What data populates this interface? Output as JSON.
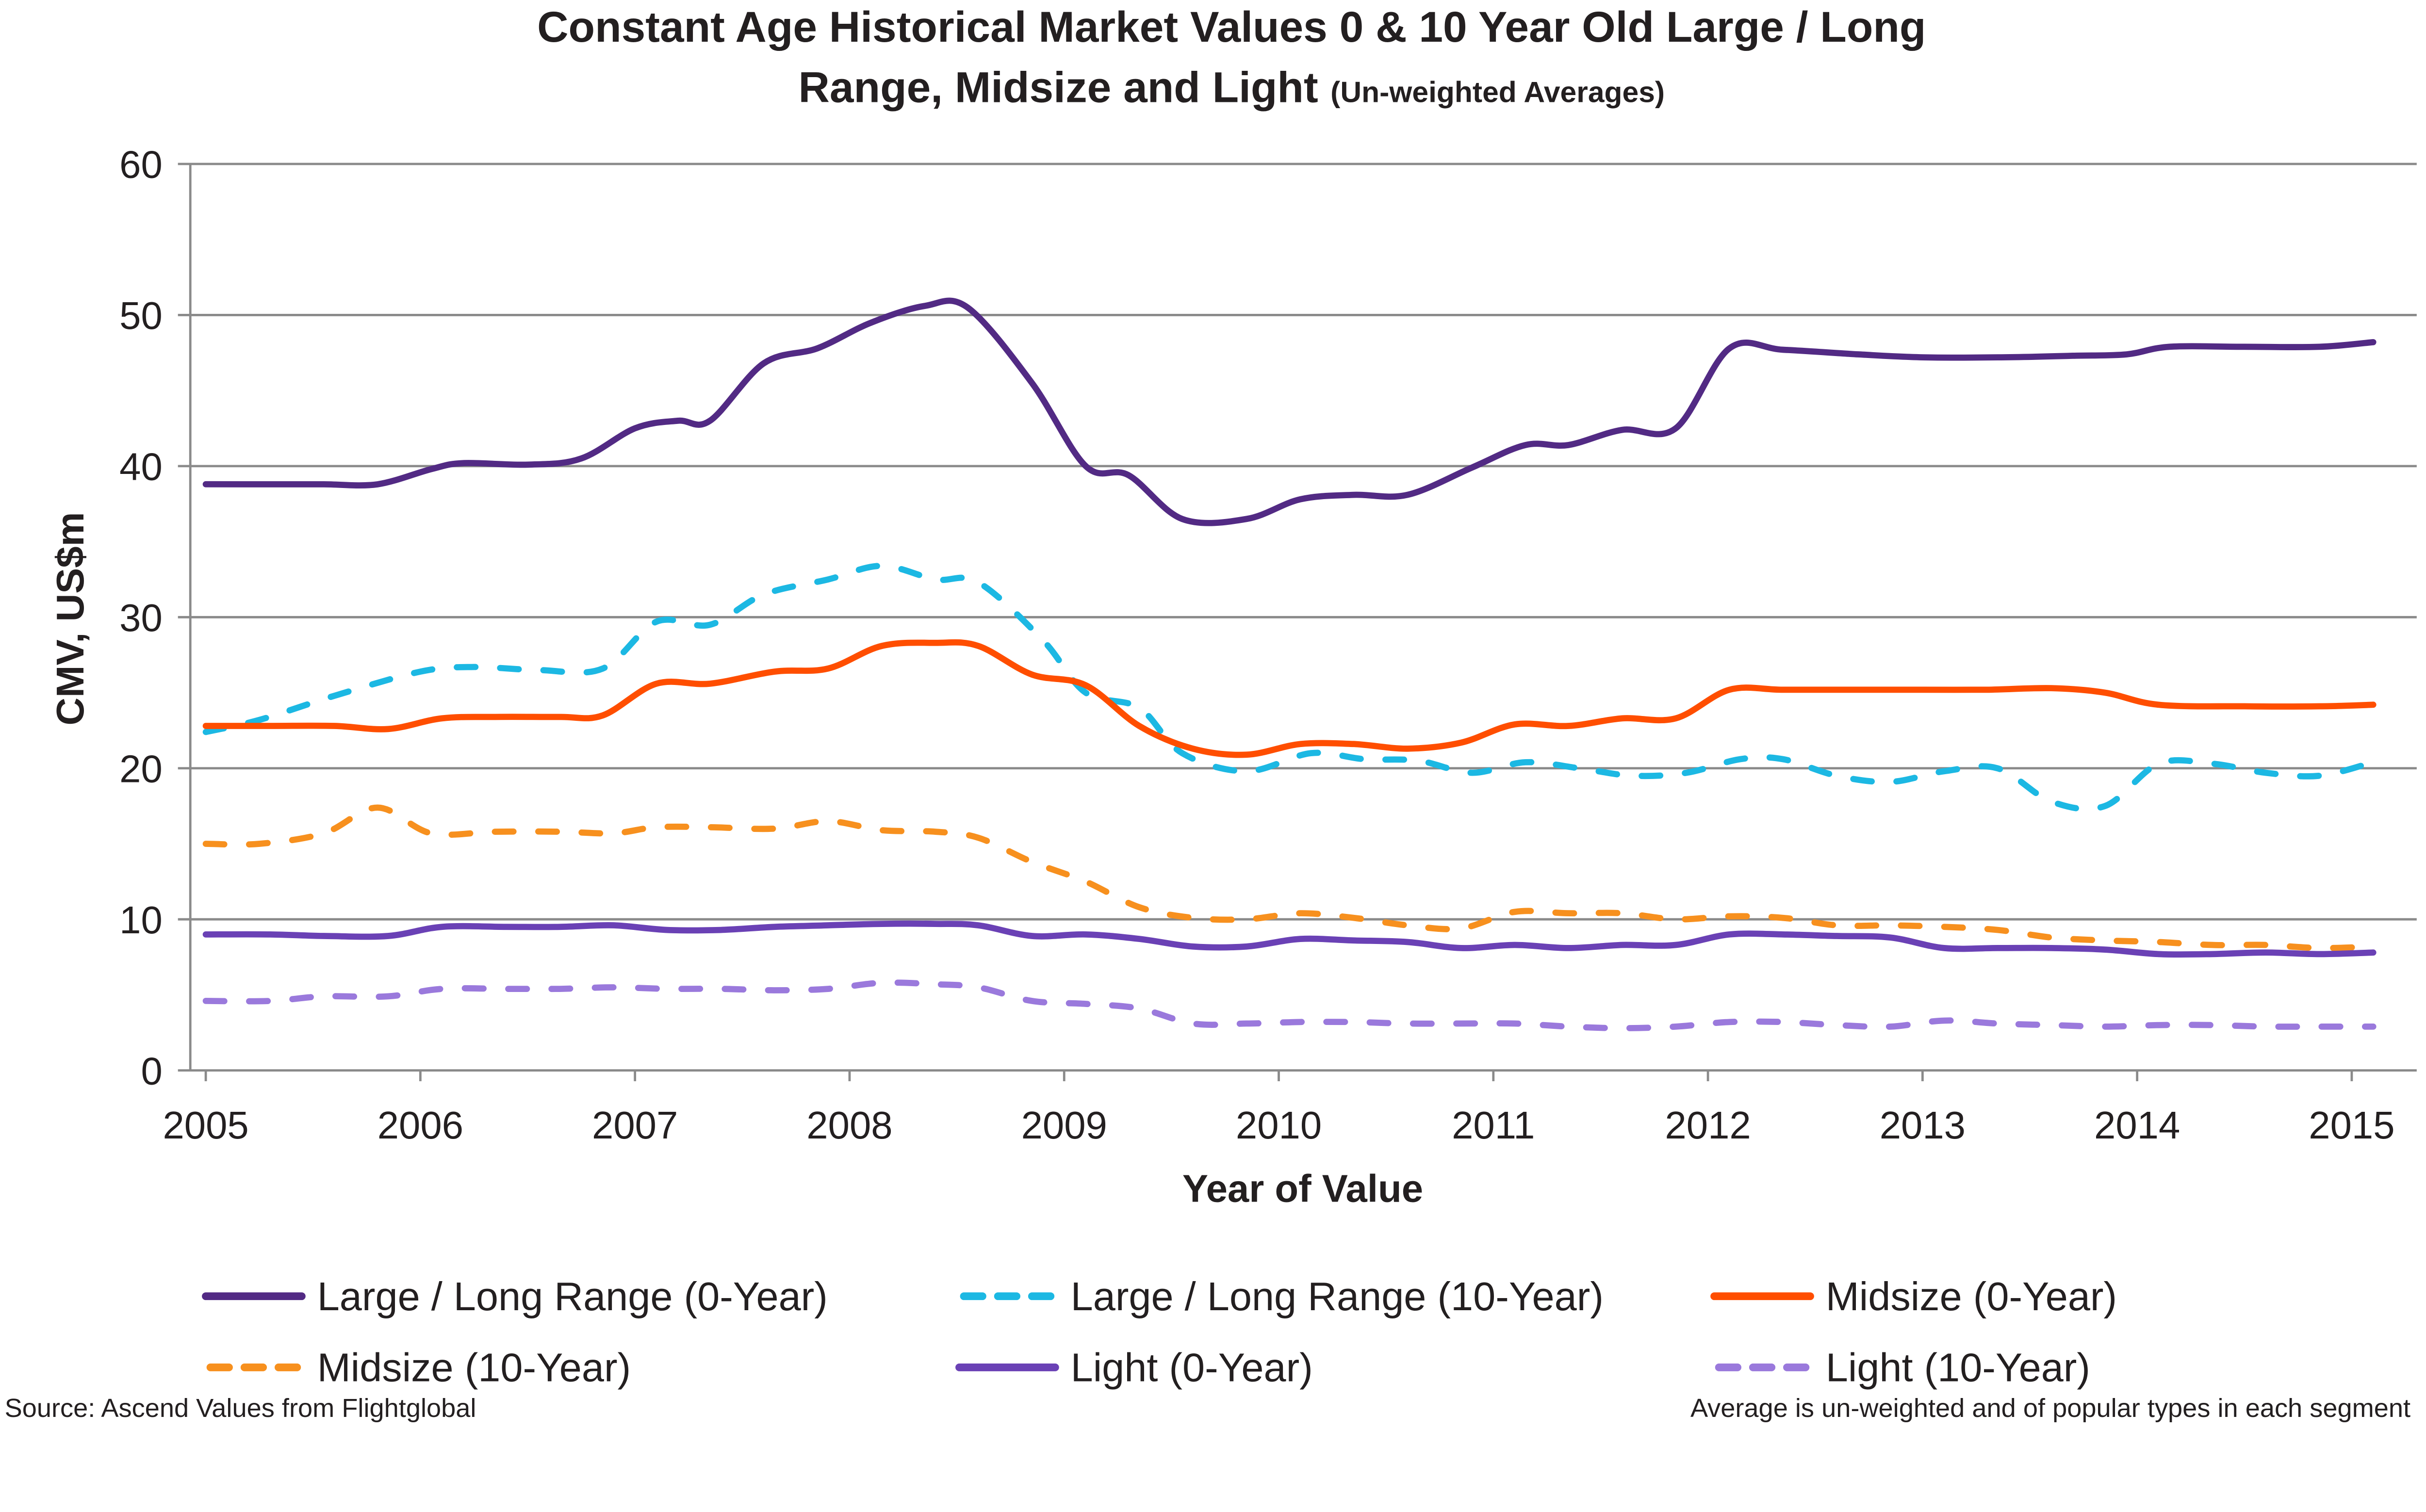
{
  "chart_data": {
    "type": "line",
    "title": "Constant Age Historical Market Values 0 & 10 Year Old Large / Long",
    "title_line2": "Range, Midsize and Light",
    "subtitle": "(Un-weighted Averages)",
    "xlabel": "Year of Value",
    "ylabel": "CMV, US$m",
    "xlim": [
      2005,
      2015
    ],
    "ylim": [
      0,
      60
    ],
    "xticks": [
      "2005",
      "2006",
      "2007",
      "2008",
      "2009",
      "2010",
      "2011",
      "2012",
      "2013",
      "2014",
      "2015"
    ],
    "yticks": [
      "0",
      "10",
      "20",
      "30",
      "40",
      "50",
      "60"
    ],
    "grid": "horizontal",
    "legend": "bottom",
    "series": [
      {
        "name": "Large / Long Range (0-Year)",
        "color": "#522a84",
        "dash": false,
        "points": [
          [
            2005,
            38.8
          ],
          [
            2005.3,
            38.8
          ],
          [
            2005.55,
            38.8
          ],
          [
            2005.8,
            38.8
          ],
          [
            2006.05,
            39.8
          ],
          [
            2006.2,
            40.2
          ],
          [
            2006.5,
            40.1
          ],
          [
            2006.75,
            40.5
          ],
          [
            2007,
            42.5
          ],
          [
            2007.2,
            43.0
          ],
          [
            2007.35,
            43.0
          ],
          [
            2007.6,
            46.8
          ],
          [
            2007.85,
            47.8
          ],
          [
            2008.1,
            49.5
          ],
          [
            2008.35,
            50.6
          ],
          [
            2008.55,
            50.5
          ],
          [
            2008.85,
            45.5
          ],
          [
            2009.1,
            40.0
          ],
          [
            2009.3,
            39.4
          ],
          [
            2009.55,
            36.5
          ],
          [
            2009.85,
            36.5
          ],
          [
            2010.1,
            37.8
          ],
          [
            2010.35,
            38.1
          ],
          [
            2010.6,
            38.1
          ],
          [
            2010.9,
            39.9
          ],
          [
            2011.15,
            41.4
          ],
          [
            2011.35,
            41.4
          ],
          [
            2011.6,
            42.4
          ],
          [
            2011.85,
            42.5
          ],
          [
            2012.1,
            47.8
          ],
          [
            2012.35,
            47.7
          ],
          [
            2012.7,
            47.4
          ],
          [
            2013,
            47.2
          ],
          [
            2013.35,
            47.2
          ],
          [
            2013.7,
            47.3
          ],
          [
            2013.95,
            47.4
          ],
          [
            2014.15,
            47.9
          ],
          [
            2014.5,
            47.9
          ],
          [
            2014.85,
            47.9
          ],
          [
            2015.1,
            48.2
          ]
        ]
      },
      {
        "name": "Large / Long Range (10-Year)",
        "color": "#1cb8e3",
        "dash": true,
        "points": [
          [
            2005,
            22.4
          ],
          [
            2005.25,
            23.2
          ],
          [
            2005.6,
            24.8
          ],
          [
            2006,
            26.4
          ],
          [
            2006.25,
            26.7
          ],
          [
            2006.55,
            26.5
          ],
          [
            2006.85,
            26.6
          ],
          [
            2007.1,
            29.7
          ],
          [
            2007.35,
            29.5
          ],
          [
            2007.6,
            31.5
          ],
          [
            2007.9,
            32.5
          ],
          [
            2008.15,
            33.4
          ],
          [
            2008.4,
            32.5
          ],
          [
            2008.6,
            32.3
          ],
          [
            2008.9,
            28.5
          ],
          [
            2009.1,
            25.0
          ],
          [
            2009.35,
            24.0
          ],
          [
            2009.55,
            21.0
          ],
          [
            2009.85,
            19.8
          ],
          [
            2010.15,
            21.0
          ],
          [
            2010.4,
            20.6
          ],
          [
            2010.65,
            20.5
          ],
          [
            2010.9,
            19.7
          ],
          [
            2011.15,
            20.4
          ],
          [
            2011.4,
            20.0
          ],
          [
            2011.65,
            19.5
          ],
          [
            2011.9,
            19.7
          ],
          [
            2012.15,
            20.6
          ],
          [
            2012.35,
            20.6
          ],
          [
            2012.6,
            19.5
          ],
          [
            2012.85,
            19.1
          ],
          [
            2013.1,
            19.8
          ],
          [
            2013.35,
            20.0
          ],
          [
            2013.6,
            17.8
          ],
          [
            2013.85,
            17.5
          ],
          [
            2014.1,
            20.3
          ],
          [
            2014.35,
            20.3
          ],
          [
            2014.6,
            19.7
          ],
          [
            2014.85,
            19.5
          ],
          [
            2015.1,
            20.4
          ]
        ]
      },
      {
        "name": "Midsize (0-Year)",
        "color": "#ff4e00",
        "dash": false,
        "points": [
          [
            2005,
            22.8
          ],
          [
            2005.3,
            22.8
          ],
          [
            2005.6,
            22.8
          ],
          [
            2005.85,
            22.6
          ],
          [
            2006.1,
            23.3
          ],
          [
            2006.35,
            23.4
          ],
          [
            2006.65,
            23.4
          ],
          [
            2006.85,
            23.5
          ],
          [
            2007.1,
            25.6
          ],
          [
            2007.35,
            25.6
          ],
          [
            2007.65,
            26.4
          ],
          [
            2007.9,
            26.6
          ],
          [
            2008.15,
            28.1
          ],
          [
            2008.4,
            28.3
          ],
          [
            2008.6,
            28.1
          ],
          [
            2008.85,
            26.2
          ],
          [
            2009.1,
            25.5
          ],
          [
            2009.35,
            22.8
          ],
          [
            2009.6,
            21.3
          ],
          [
            2009.85,
            20.9
          ],
          [
            2010.1,
            21.6
          ],
          [
            2010.35,
            21.6
          ],
          [
            2010.6,
            21.3
          ],
          [
            2010.85,
            21.7
          ],
          [
            2011.1,
            22.9
          ],
          [
            2011.35,
            22.8
          ],
          [
            2011.6,
            23.3
          ],
          [
            2011.85,
            23.3
          ],
          [
            2012.1,
            25.2
          ],
          [
            2012.35,
            25.2
          ],
          [
            2012.7,
            25.2
          ],
          [
            2013,
            25.2
          ],
          [
            2013.3,
            25.2
          ],
          [
            2013.6,
            25.3
          ],
          [
            2013.85,
            25.0
          ],
          [
            2014.1,
            24.2
          ],
          [
            2014.5,
            24.1
          ],
          [
            2014.85,
            24.1
          ],
          [
            2015.1,
            24.2
          ]
        ]
      },
      {
        "name": "Midsize (10-Year)",
        "color": "#f7901e",
        "dash": true,
        "points": [
          [
            2005,
            15.0
          ],
          [
            2005.25,
            15.0
          ],
          [
            2005.55,
            15.7
          ],
          [
            2005.8,
            17.4
          ],
          [
            2006.05,
            15.7
          ],
          [
            2006.35,
            15.8
          ],
          [
            2006.65,
            15.8
          ],
          [
            2006.9,
            15.7
          ],
          [
            2007.1,
            16.1
          ],
          [
            2007.35,
            16.1
          ],
          [
            2007.65,
            16.0
          ],
          [
            2007.9,
            16.5
          ],
          [
            2008.15,
            15.9
          ],
          [
            2008.4,
            15.8
          ],
          [
            2008.6,
            15.4
          ],
          [
            2008.85,
            13.8
          ],
          [
            2009.1,
            12.5
          ],
          [
            2009.35,
            10.8
          ],
          [
            2009.6,
            10.1
          ],
          [
            2009.85,
            10.0
          ],
          [
            2010.1,
            10.4
          ],
          [
            2010.35,
            10.1
          ],
          [
            2010.6,
            9.6
          ],
          [
            2010.85,
            9.4
          ],
          [
            2011.1,
            10.5
          ],
          [
            2011.35,
            10.4
          ],
          [
            2011.6,
            10.4
          ],
          [
            2011.85,
            10.0
          ],
          [
            2012.1,
            10.2
          ],
          [
            2012.35,
            10.1
          ],
          [
            2012.6,
            9.6
          ],
          [
            2012.85,
            9.6
          ],
          [
            2013.1,
            9.5
          ],
          [
            2013.35,
            9.3
          ],
          [
            2013.6,
            8.8
          ],
          [
            2013.85,
            8.6
          ],
          [
            2014.1,
            8.5
          ],
          [
            2014.35,
            8.3
          ],
          [
            2014.6,
            8.3
          ],
          [
            2014.85,
            8.1
          ],
          [
            2015.1,
            8.2
          ]
        ]
      },
      {
        "name": "Light (0-Year)",
        "color": "#6a41b5",
        "dash": false,
        "points": [
          [
            2005,
            9.0
          ],
          [
            2005.3,
            9.0
          ],
          [
            2005.55,
            8.9
          ],
          [
            2005.85,
            8.9
          ],
          [
            2006.1,
            9.5
          ],
          [
            2006.4,
            9.5
          ],
          [
            2006.65,
            9.5
          ],
          [
            2006.9,
            9.6
          ],
          [
            2007.15,
            9.3
          ],
          [
            2007.4,
            9.3
          ],
          [
            2007.65,
            9.5
          ],
          [
            2007.9,
            9.6
          ],
          [
            2008.15,
            9.7
          ],
          [
            2008.4,
            9.7
          ],
          [
            2008.6,
            9.6
          ],
          [
            2008.85,
            8.9
          ],
          [
            2009.1,
            9.0
          ],
          [
            2009.35,
            8.7
          ],
          [
            2009.6,
            8.2
          ],
          [
            2009.85,
            8.2
          ],
          [
            2010.1,
            8.7
          ],
          [
            2010.35,
            8.6
          ],
          [
            2010.6,
            8.5
          ],
          [
            2010.85,
            8.1
          ],
          [
            2011.1,
            8.3
          ],
          [
            2011.35,
            8.1
          ],
          [
            2011.6,
            8.3
          ],
          [
            2011.85,
            8.3
          ],
          [
            2012.1,
            9.0
          ],
          [
            2012.35,
            9.0
          ],
          [
            2012.6,
            8.9
          ],
          [
            2012.85,
            8.8
          ],
          [
            2013.1,
            8.1
          ],
          [
            2013.35,
            8.1
          ],
          [
            2013.6,
            8.1
          ],
          [
            2013.85,
            8.0
          ],
          [
            2014.1,
            7.7
          ],
          [
            2014.35,
            7.7
          ],
          [
            2014.6,
            7.8
          ],
          [
            2014.85,
            7.7
          ],
          [
            2015.1,
            7.8
          ]
        ]
      },
      {
        "name": "Light (10-Year)",
        "color": "#9a79dc",
        "dash": true,
        "points": [
          [
            2005,
            4.6
          ],
          [
            2005.3,
            4.6
          ],
          [
            2005.55,
            4.9
          ],
          [
            2005.85,
            4.9
          ],
          [
            2006.1,
            5.4
          ],
          [
            2006.4,
            5.4
          ],
          [
            2006.65,
            5.4
          ],
          [
            2006.9,
            5.5
          ],
          [
            2007.15,
            5.4
          ],
          [
            2007.4,
            5.4
          ],
          [
            2007.65,
            5.3
          ],
          [
            2007.9,
            5.4
          ],
          [
            2008.15,
            5.8
          ],
          [
            2008.4,
            5.7
          ],
          [
            2008.6,
            5.5
          ],
          [
            2008.85,
            4.6
          ],
          [
            2009.1,
            4.4
          ],
          [
            2009.35,
            4.1
          ],
          [
            2009.6,
            3.1
          ],
          [
            2009.85,
            3.1
          ],
          [
            2010.1,
            3.2
          ],
          [
            2010.35,
            3.2
          ],
          [
            2010.6,
            3.1
          ],
          [
            2010.85,
            3.1
          ],
          [
            2011.1,
            3.1
          ],
          [
            2011.35,
            2.9
          ],
          [
            2011.6,
            2.8
          ],
          [
            2011.85,
            2.9
          ],
          [
            2012.1,
            3.2
          ],
          [
            2012.35,
            3.2
          ],
          [
            2012.6,
            3.0
          ],
          [
            2012.85,
            2.9
          ],
          [
            2013.1,
            3.3
          ],
          [
            2013.35,
            3.1
          ],
          [
            2013.6,
            3.0
          ],
          [
            2013.85,
            2.9
          ],
          [
            2014.1,
            3.0
          ],
          [
            2014.35,
            3.0
          ],
          [
            2014.6,
            2.9
          ],
          [
            2014.85,
            2.9
          ],
          [
            2015.1,
            2.9
          ]
        ]
      }
    ],
    "source_note": "Source:  Ascend Values from Flightglobal",
    "footnote": "Average is un-weighted and of popular types in each segment"
  }
}
